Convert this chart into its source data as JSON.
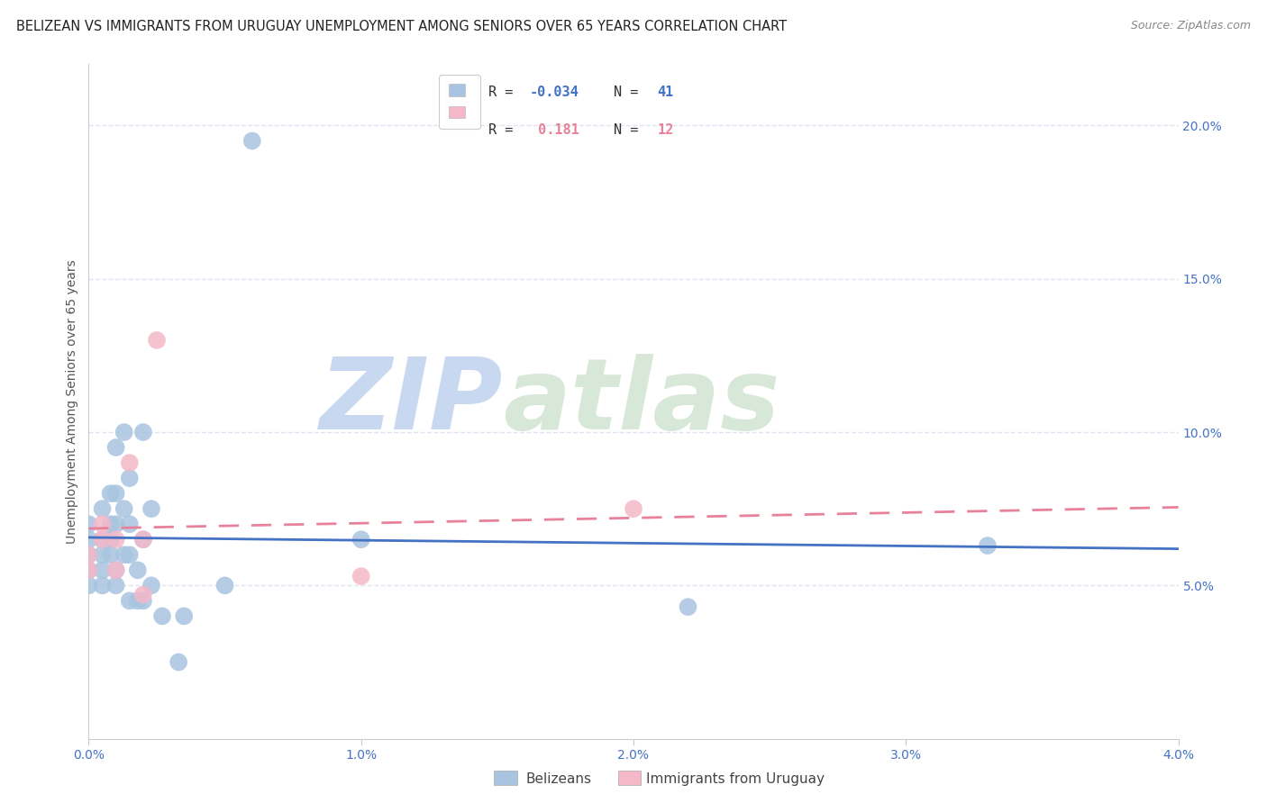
{
  "title": "BELIZEAN VS IMMIGRANTS FROM URUGUAY UNEMPLOYMENT AMONG SENIORS OVER 65 YEARS CORRELATION CHART",
  "source": "Source: ZipAtlas.com",
  "ylabel": "Unemployment Among Seniors over 65 years",
  "xlim": [
    0.0,
    0.04
  ],
  "ylim": [
    0.0,
    0.22
  ],
  "watermark_zip": "ZIP",
  "watermark_atlas": "atlas",
  "blue_color": "#a8c4e0",
  "blue_line_color": "#4472c4",
  "pink_color": "#f4b8c8",
  "pink_line_color": "#e8829a",
  "legend_label_blue": "Belizeans",
  "legend_label_pink": "Immigrants from Uruguay",
  "R_blue": -0.034,
  "N_blue": 41,
  "R_pink": 0.181,
  "N_pink": 12,
  "blue_points_x": [
    0.0,
    0.0,
    0.0,
    0.0,
    0.0,
    0.0005,
    0.0005,
    0.0005,
    0.0005,
    0.0005,
    0.0008,
    0.0008,
    0.0008,
    0.0008,
    0.001,
    0.001,
    0.001,
    0.001,
    0.001,
    0.0013,
    0.0013,
    0.0013,
    0.0015,
    0.0015,
    0.0015,
    0.0015,
    0.0018,
    0.0018,
    0.002,
    0.002,
    0.002,
    0.0023,
    0.0023,
    0.0027,
    0.0033,
    0.0035,
    0.005,
    0.006,
    0.01,
    0.022,
    0.033
  ],
  "blue_points_y": [
    0.06,
    0.065,
    0.07,
    0.055,
    0.05,
    0.075,
    0.065,
    0.06,
    0.055,
    0.05,
    0.08,
    0.07,
    0.065,
    0.06,
    0.095,
    0.08,
    0.07,
    0.055,
    0.05,
    0.1,
    0.075,
    0.06,
    0.085,
    0.07,
    0.06,
    0.045,
    0.055,
    0.045,
    0.1,
    0.065,
    0.045,
    0.075,
    0.05,
    0.04,
    0.025,
    0.04,
    0.05,
    0.195,
    0.065,
    0.043,
    0.063
  ],
  "pink_points_x": [
    0.0,
    0.0,
    0.0005,
    0.0005,
    0.001,
    0.001,
    0.0015,
    0.002,
    0.002,
    0.0025,
    0.01,
    0.02
  ],
  "pink_points_y": [
    0.06,
    0.055,
    0.07,
    0.065,
    0.065,
    0.055,
    0.09,
    0.065,
    0.047,
    0.13,
    0.053,
    0.075
  ],
  "title_fontsize": 10.5,
  "source_fontsize": 9,
  "tick_color": "#4472c4",
  "axis_label_color": "#555555",
  "axis_label_fontsize": 10,
  "background_color": "#ffffff",
  "grid_color": "#dde5f0",
  "watermark_color_zip": "#c8d8f0",
  "watermark_color_atlas": "#d8e8d8",
  "watermark_fontsize": 80
}
